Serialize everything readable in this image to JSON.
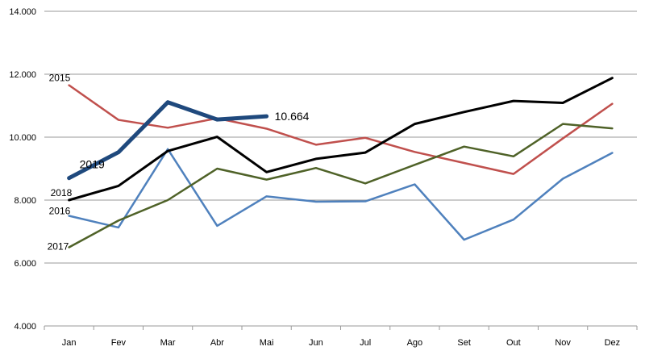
{
  "chart_data": {
    "type": "line",
    "categories": [
      "Jan",
      "Fev",
      "Mar",
      "Abr",
      "Mai",
      "Jun",
      "Jul",
      "Ago",
      "Set",
      "Out",
      "Nov",
      "Dez"
    ],
    "ylim": [
      4000,
      14000
    ],
    "yticks": [
      4000,
      6000,
      8000,
      10000,
      12000,
      14000
    ],
    "ytick_labels": [
      "4.000",
      "6.000",
      "8.000",
      "10.000",
      "12.000",
      "14.000"
    ],
    "grid": "horizontal",
    "series": [
      {
        "name": "2015",
        "color": "#C0504D",
        "values": [
          11650,
          10550,
          10300,
          10600,
          10270,
          9760,
          9980,
          9530,
          9180,
          8830,
          9960,
          11060
        ]
      },
      {
        "name": "2016",
        "color": "#4F81BD",
        "values": [
          7500,
          7130,
          9620,
          7180,
          8120,
          7950,
          7960,
          8500,
          6740,
          7380,
          8680,
          9500
        ]
      },
      {
        "name": "2017",
        "color": "#4F6228",
        "values": [
          6500,
          7350,
          8000,
          9000,
          8650,
          9020,
          8530,
          9120,
          9700,
          9390,
          10420,
          10280
        ]
      },
      {
        "name": "2018",
        "color": "#000000",
        "values": [
          8000,
          8450,
          9560,
          10010,
          8890,
          9310,
          9510,
          10420,
          10800,
          11150,
          11090,
          11880
        ]
      },
      {
        "name": "2019",
        "color": "#1F497D",
        "values": [
          8700,
          9520,
          11110,
          10560,
          10664,
          null,
          null,
          null,
          null,
          null,
          null,
          null
        ],
        "end_label": "10.664"
      }
    ]
  }
}
